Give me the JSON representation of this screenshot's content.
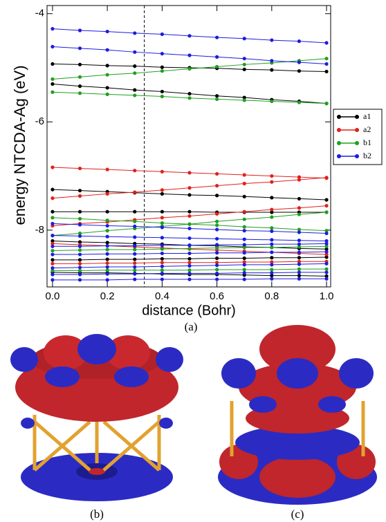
{
  "chart_data": {
    "type": "line",
    "ylabel": "energy NTCDA-Ag (eV)",
    "xlabel": "distance (Bohr)",
    "x": [
      0,
      0.1,
      0.2,
      0.3,
      0.4,
      0.5,
      0.6,
      0.7,
      0.8,
      0.9,
      1
    ],
    "xlim": [
      -0.02,
      1.015
    ],
    "ylim": [
      -9.05,
      -3.85
    ],
    "xticks": [
      {
        "value": 0,
        "label": "0.0"
      },
      0.2,
      0.4,
      0.6,
      0.8,
      {
        "value": 1,
        "label": "1.0"
      }
    ],
    "yticks": [
      -8,
      -6,
      -4
    ],
    "vline": 0.335,
    "legend": "right",
    "series": [
      {
        "name": "a1",
        "color": "#000000",
        "lines": [
          [
            -4.93,
            -4.94,
            -4.96,
            -4.97,
            -4.99,
            -5.0,
            -5.01,
            -5.03,
            -5.04,
            -5.06,
            -5.07
          ],
          [
            -5.3,
            -5.34,
            -5.37,
            -5.41,
            -5.44,
            -5.48,
            -5.52,
            -5.55,
            -5.59,
            -5.62,
            -5.66
          ],
          [
            -7.25,
            -7.27,
            -7.29,
            -7.31,
            -7.33,
            -7.35,
            -7.36,
            -7.38,
            -7.4,
            -7.42,
            -7.44
          ],
          [
            -7.66,
            -7.66,
            -7.66,
            -7.66,
            -7.66,
            -7.66,
            -7.67,
            -7.67,
            -7.67,
            -7.67,
            -7.67
          ],
          [
            -8.2,
            -8.22,
            -8.23,
            -8.25,
            -8.26,
            -8.28,
            -8.29,
            -8.31,
            -8.32,
            -8.34,
            -8.35
          ],
          [
            -8.55,
            -8.55,
            -8.54,
            -8.54,
            -8.53,
            -8.53,
            -8.52,
            -8.52,
            -8.51,
            -8.51,
            -8.5
          ],
          [
            -8.78,
            -8.79,
            -8.79,
            -8.8,
            -8.81,
            -8.82,
            -8.82,
            -8.83,
            -8.84,
            -8.84,
            -8.85
          ]
        ]
      },
      {
        "name": "a2",
        "color": "#e0201b",
        "lines": [
          [
            -6.84,
            -6.86,
            -6.88,
            -6.9,
            -6.92,
            -6.94,
            -6.96,
            -6.98,
            -7.0,
            -7.02,
            -7.04
          ],
          [
            -7.41,
            -7.37,
            -7.33,
            -7.3,
            -7.26,
            -7.22,
            -7.18,
            -7.14,
            -7.11,
            -7.07,
            -7.03
          ],
          [
            -7.92,
            -7.88,
            -7.85,
            -7.81,
            -7.77,
            -7.74,
            -7.7,
            -7.66,
            -7.62,
            -7.59,
            -7.55
          ],
          [
            -8.25,
            -8.27,
            -8.29,
            -8.31,
            -8.33,
            -8.35,
            -8.37,
            -8.39,
            -8.41,
            -8.43,
            -8.45
          ],
          [
            -8.62,
            -8.62,
            -8.61,
            -8.61,
            -8.6,
            -8.6,
            -8.6,
            -8.59,
            -8.59,
            -8.58,
            -8.58
          ]
        ]
      },
      {
        "name": "b1",
        "color": "#1fa01f",
        "lines": [
          [
            -5.21,
            -5.17,
            -5.13,
            -5.1,
            -5.06,
            -5.02,
            -4.98,
            -4.94,
            -4.91,
            -4.87,
            -4.83
          ],
          [
            -5.45,
            -5.47,
            -5.49,
            -5.51,
            -5.53,
            -5.56,
            -5.58,
            -5.6,
            -5.62,
            -5.64,
            -5.66
          ],
          [
            -7.77,
            -7.79,
            -7.82,
            -7.84,
            -7.87,
            -7.89,
            -7.91,
            -7.94,
            -7.96,
            -7.99,
            -8.01
          ],
          [
            -8.1,
            -8.06,
            -8.01,
            -7.97,
            -7.93,
            -7.89,
            -7.84,
            -7.8,
            -7.76,
            -7.71,
            -7.67
          ],
          [
            -8.38,
            -8.37,
            -8.36,
            -8.36,
            -8.35,
            -8.34,
            -8.33,
            -8.32,
            -8.32,
            -8.31,
            -8.3
          ],
          [
            -8.75,
            -8.75,
            -8.74,
            -8.74,
            -8.74,
            -8.74,
            -8.73,
            -8.73,
            -8.73,
            -8.72,
            -8.72
          ]
        ]
      },
      {
        "name": "b2",
        "color": "#1c1ce0",
        "lines": [
          [
            -4.28,
            -4.31,
            -4.33,
            -4.36,
            -4.38,
            -4.41,
            -4.44,
            -4.46,
            -4.49,
            -4.51,
            -4.54
          ],
          [
            -4.61,
            -4.64,
            -4.67,
            -4.71,
            -4.74,
            -4.77,
            -4.8,
            -4.83,
            -4.87,
            -4.9,
            -4.93
          ],
          [
            -7.88,
            -7.9,
            -7.92,
            -7.93,
            -7.95,
            -7.97,
            -7.99,
            -8.01,
            -8.02,
            -8.04,
            -8.06
          ],
          [
            -8.1,
            -8.11,
            -8.12,
            -8.13,
            -8.14,
            -8.15,
            -8.16,
            -8.17,
            -8.18,
            -8.19,
            -8.2
          ],
          [
            -8.3,
            -8.3,
            -8.29,
            -8.29,
            -8.28,
            -8.28,
            -8.27,
            -8.27,
            -8.26,
            -8.26,
            -8.25
          ],
          [
            -8.45,
            -8.45,
            -8.44,
            -8.44,
            -8.43,
            -8.43,
            -8.42,
            -8.42,
            -8.41,
            -8.41,
            -8.4
          ],
          [
            -8.7,
            -8.69,
            -8.68,
            -8.68,
            -8.67,
            -8.66,
            -8.65,
            -8.64,
            -8.64,
            -8.63,
            -8.62
          ],
          [
            -8.82,
            -8.82,
            -8.81,
            -8.81,
            -8.8,
            -8.8,
            -8.8,
            -8.79,
            -8.79,
            -8.78,
            -8.78
          ],
          [
            -8.92,
            -8.92,
            -8.92,
            -8.91,
            -8.91,
            -8.91,
            -8.91,
            -8.91,
            -8.9,
            -8.9,
            -8.9
          ]
        ]
      }
    ]
  },
  "captions": {
    "a": "(a)",
    "b": "(b)",
    "c": "(c)"
  }
}
